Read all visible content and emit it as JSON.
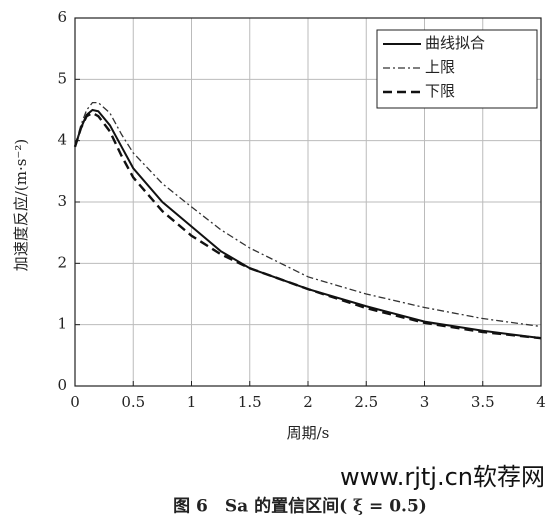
{
  "chart_data": {
    "type": "line",
    "xlabel": "周期/s",
    "ylabel": "加速度反应/(m·s⁻²)",
    "caption": "图 6　Sa 的置信区间( ξ = 0.5)",
    "watermark": "www.rjtj.cn软荐网",
    "x": [
      0,
      0.05,
      0.1,
      0.15,
      0.2,
      0.3,
      0.4,
      0.5,
      0.75,
      1,
      1.25,
      1.5,
      2,
      2.5,
      3,
      3.5,
      4
    ],
    "series": [
      {
        "name": "曲线拟合",
        "color": "#111111",
        "style": "solid",
        "values": [
          3.9,
          4.2,
          4.42,
          4.5,
          4.48,
          4.25,
          3.9,
          3.55,
          3.0,
          2.6,
          2.2,
          1.92,
          1.58,
          1.3,
          1.05,
          0.9,
          0.78
        ]
      },
      {
        "name": "上限",
        "color": "#333333",
        "style": "dashdot",
        "values": [
          3.9,
          4.25,
          4.5,
          4.62,
          4.62,
          4.45,
          4.1,
          3.8,
          3.3,
          2.92,
          2.55,
          2.25,
          1.78,
          1.5,
          1.28,
          1.1,
          0.97
        ]
      },
      {
        "name": "下限",
        "color": "#111111",
        "style": "dashed",
        "values": [
          3.9,
          4.2,
          4.4,
          4.45,
          4.4,
          4.15,
          3.75,
          3.4,
          2.85,
          2.45,
          2.15,
          1.92,
          1.58,
          1.27,
          1.03,
          0.88,
          0.78
        ]
      }
    ],
    "xlim": [
      0,
      4
    ],
    "xticks": [
      0,
      0.5,
      1,
      1.5,
      2,
      2.5,
      3,
      3.5,
      4
    ],
    "ylim": [
      0,
      6
    ],
    "yticks": [
      0,
      1,
      2,
      3,
      4,
      5,
      6
    ],
    "grid": true,
    "legend": "upper right"
  }
}
